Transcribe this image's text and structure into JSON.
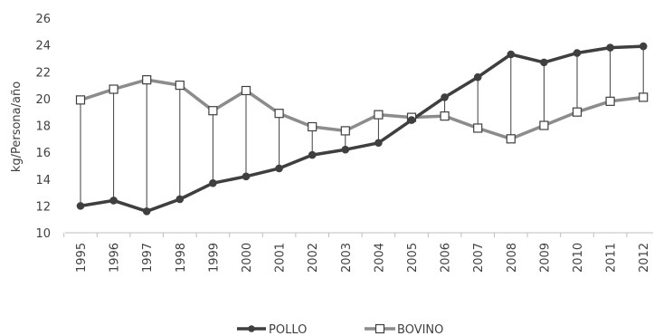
{
  "chart_data": {
    "type": "line",
    "title": "",
    "xlabel": "",
    "ylabel": "kg/Persona/año",
    "categories": [
      "1995",
      "1996",
      "1997",
      "1998",
      "1999",
      "2000",
      "2001",
      "2002",
      "2003",
      "2004",
      "2005",
      "2006",
      "2007",
      "2008",
      "2009",
      "2010",
      "2011",
      "2012"
    ],
    "ylim": [
      10,
      26
    ],
    "yticks": [
      10,
      12,
      14,
      16,
      18,
      20,
      22,
      24,
      26
    ],
    "grid": false,
    "legend_position": "bottom",
    "drop_lines": true,
    "series": [
      {
        "name": "POLLO",
        "marker": "filled-circle",
        "color": "#3f3f3f",
        "values": [
          12.0,
          12.4,
          11.6,
          12.5,
          13.7,
          14.2,
          14.8,
          15.8,
          16.2,
          16.7,
          18.4,
          20.1,
          21.6,
          23.3,
          22.7,
          23.4,
          23.8,
          23.9
        ]
      },
      {
        "name": "BOVINO",
        "marker": "open-square",
        "color": "#8c8c8c",
        "values": [
          19.9,
          20.7,
          21.4,
          21.0,
          19.1,
          20.6,
          18.9,
          17.9,
          17.6,
          18.8,
          18.6,
          18.7,
          17.8,
          17.0,
          18.0,
          19.0,
          19.8,
          20.1
        ]
      }
    ]
  }
}
